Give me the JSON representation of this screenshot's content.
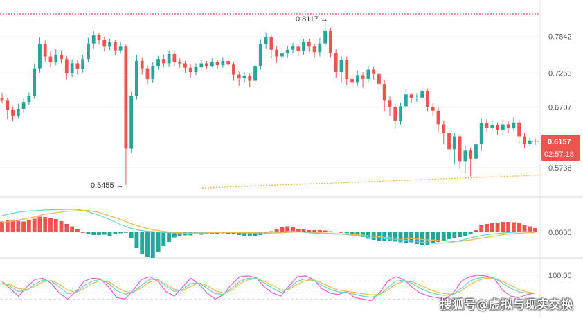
{
  "chart_data": [
    {
      "type": "candlestick",
      "title": "",
      "ylim": [
        0.5455,
        0.815
      ],
      "y_ticks": [
        "0.7842",
        "0.7253",
        "0.6707",
        "0.5736"
      ],
      "y_tick_values": [
        0.7842,
        0.7253,
        0.6707,
        0.5736
      ],
      "colors": {
        "up": "#26a69a",
        "down": "#ef5350",
        "grid": "#eef0f4",
        "axis_text": "#555a66"
      },
      "current_price": {
        "label": "0.6157",
        "value": 0.6157,
        "countdown": "02:57:18",
        "color": "#ef5350"
      },
      "annotations": [
        {
          "text": "0.8117 →",
          "value": 0.8117,
          "kind": "high"
        },
        {
          "text": "0.5455 →",
          "value": 0.5455,
          "kind": "low"
        }
      ],
      "reference_line": {
        "value": 0.8117,
        "style": "dotted",
        "color": "#d0312d"
      },
      "trend_line": {
        "style": "dotted",
        "color": "#f0b429",
        "from": 0.5408,
        "to": 0.5615
      },
      "candles": [
        [
          0.686,
          0.682,
          0.694,
          0.677
        ],
        [
          0.682,
          0.666,
          0.686,
          0.652
        ],
        [
          0.666,
          0.657,
          0.672,
          0.648
        ],
        [
          0.657,
          0.668,
          0.676,
          0.653
        ],
        [
          0.668,
          0.679,
          0.685,
          0.662
        ],
        [
          0.679,
          0.689,
          0.694,
          0.674
        ],
        [
          0.689,
          0.733,
          0.74,
          0.684
        ],
        [
          0.733,
          0.772,
          0.783,
          0.726
        ],
        [
          0.772,
          0.752,
          0.778,
          0.744
        ],
        [
          0.752,
          0.743,
          0.76,
          0.735
        ],
        [
          0.743,
          0.755,
          0.764,
          0.738
        ],
        [
          0.755,
          0.748,
          0.762,
          0.741
        ],
        [
          0.748,
          0.725,
          0.753,
          0.715
        ],
        [
          0.725,
          0.741,
          0.748,
          0.719
        ],
        [
          0.741,
          0.732,
          0.746,
          0.723
        ],
        [
          0.732,
          0.748,
          0.755,
          0.726
        ],
        [
          0.748,
          0.773,
          0.782,
          0.743
        ],
        [
          0.773,
          0.786,
          0.793,
          0.765
        ],
        [
          0.786,
          0.779,
          0.79,
          0.771
        ],
        [
          0.779,
          0.768,
          0.783,
          0.761
        ],
        [
          0.768,
          0.775,
          0.781,
          0.762
        ],
        [
          0.775,
          0.762,
          0.779,
          0.754
        ],
        [
          0.762,
          0.768,
          0.775,
          0.757
        ],
        [
          0.768,
          0.604,
          0.771,
          0.5455
        ],
        [
          0.604,
          0.689,
          0.696,
          0.598
        ],
        [
          0.689,
          0.745,
          0.754,
          0.683
        ],
        [
          0.745,
          0.733,
          0.751,
          0.723
        ],
        [
          0.733,
          0.716,
          0.738,
          0.707
        ],
        [
          0.716,
          0.737,
          0.743,
          0.71
        ],
        [
          0.737,
          0.748,
          0.753,
          0.731
        ],
        [
          0.748,
          0.741,
          0.755,
          0.735
        ],
        [
          0.741,
          0.756,
          0.762,
          0.736
        ],
        [
          0.756,
          0.743,
          0.76,
          0.737
        ],
        [
          0.743,
          0.741,
          0.749,
          0.734
        ],
        [
          0.741,
          0.734,
          0.745,
          0.726
        ],
        [
          0.734,
          0.727,
          0.739,
          0.719
        ],
        [
          0.727,
          0.735,
          0.741,
          0.722
        ],
        [
          0.735,
          0.741,
          0.746,
          0.731
        ],
        [
          0.741,
          0.737,
          0.745,
          0.732
        ],
        [
          0.737,
          0.743,
          0.749,
          0.735
        ],
        [
          0.743,
          0.738,
          0.747,
          0.732
        ],
        [
          0.738,
          0.745,
          0.751,
          0.734
        ],
        [
          0.745,
          0.739,
          0.75,
          0.734
        ],
        [
          0.739,
          0.723,
          0.743,
          0.713
        ],
        [
          0.723,
          0.717,
          0.728,
          0.705
        ],
        [
          0.717,
          0.721,
          0.727,
          0.71
        ],
        [
          0.721,
          0.713,
          0.725,
          0.703
        ],
        [
          0.713,
          0.737,
          0.745,
          0.707
        ],
        [
          0.737,
          0.772,
          0.78,
          0.731
        ],
        [
          0.772,
          0.783,
          0.791,
          0.765
        ],
        [
          0.783,
          0.763,
          0.787,
          0.749
        ],
        [
          0.763,
          0.752,
          0.769,
          0.742
        ],
        [
          0.752,
          0.757,
          0.763,
          0.731
        ],
        [
          0.757,
          0.763,
          0.769,
          0.751
        ],
        [
          0.763,
          0.768,
          0.774,
          0.757
        ],
        [
          0.768,
          0.761,
          0.772,
          0.753
        ],
        [
          0.761,
          0.776,
          0.781,
          0.755
        ],
        [
          0.776,
          0.768,
          0.781,
          0.76
        ],
        [
          0.768,
          0.759,
          0.773,
          0.75
        ],
        [
          0.759,
          0.773,
          0.782,
          0.752
        ],
        [
          0.773,
          0.794,
          0.8117,
          0.767
        ],
        [
          0.794,
          0.758,
          0.799,
          0.751
        ],
        [
          0.758,
          0.727,
          0.764,
          0.717
        ],
        [
          0.727,
          0.747,
          0.753,
          0.71
        ],
        [
          0.747,
          0.716,
          0.752,
          0.706
        ],
        [
          0.716,
          0.711,
          0.725,
          0.701
        ],
        [
          0.711,
          0.722,
          0.729,
          0.705
        ],
        [
          0.722,
          0.716,
          0.727,
          0.702
        ],
        [
          0.716,
          0.731,
          0.737,
          0.711
        ],
        [
          0.731,
          0.724,
          0.735,
          0.715
        ],
        [
          0.724,
          0.708,
          0.728,
          0.698
        ],
        [
          0.708,
          0.682,
          0.714,
          0.664
        ],
        [
          0.682,
          0.671,
          0.688,
          0.657
        ],
        [
          0.671,
          0.649,
          0.677,
          0.636
        ],
        [
          0.649,
          0.672,
          0.678,
          0.642
        ],
        [
          0.672,
          0.691,
          0.699,
          0.665
        ],
        [
          0.691,
          0.685,
          0.694,
          0.678
        ],
        [
          0.685,
          0.686,
          0.693,
          0.679
        ],
        [
          0.686,
          0.697,
          0.703,
          0.682
        ],
        [
          0.697,
          0.671,
          0.701,
          0.664
        ],
        [
          0.671,
          0.665,
          0.677,
          0.657
        ],
        [
          0.665,
          0.643,
          0.671,
          0.632
        ],
        [
          0.643,
          0.629,
          0.649,
          0.611
        ],
        [
          0.629,
          0.603,
          0.637,
          0.586
        ],
        [
          0.603,
          0.624,
          0.629,
          0.579
        ],
        [
          0.624,
          0.584,
          0.627,
          0.571
        ],
        [
          0.584,
          0.601,
          0.609,
          0.565
        ],
        [
          0.601,
          0.588,
          0.606,
          0.559
        ],
        [
          0.588,
          0.611,
          0.618,
          0.579
        ],
        [
          0.611,
          0.645,
          0.653,
          0.6
        ],
        [
          0.645,
          0.638,
          0.652,
          0.631
        ],
        [
          0.638,
          0.642,
          0.648,
          0.634
        ],
        [
          0.642,
          0.634,
          0.646,
          0.627
        ],
        [
          0.634,
          0.643,
          0.651,
          0.626
        ],
        [
          0.643,
          0.637,
          0.648,
          0.629
        ],
        [
          0.637,
          0.646,
          0.654,
          0.633
        ],
        [
          0.646,
          0.624,
          0.651,
          0.613
        ],
        [
          0.624,
          0.612,
          0.629,
          0.605
        ],
        [
          0.612,
          0.617,
          0.622,
          0.608
        ],
        [
          0.617,
          0.6157,
          0.621,
          0.61
        ]
      ],
      "indicator_note": "price pane"
    },
    {
      "type": "histogram-line",
      "y_tick": "0.0000",
      "histogram": [
        0.31,
        0.34,
        0.35,
        0.33,
        0.31,
        0.36,
        0.39,
        0.45,
        0.44,
        0.41,
        0.38,
        0.32,
        0.24,
        0.17,
        0.08,
        0.0,
        -0.04,
        -0.08,
        -0.08,
        -0.07,
        -0.1,
        -0.05,
        -0.03,
        -0.01,
        -0.18,
        -0.45,
        -0.62,
        -0.7,
        -0.74,
        -0.56,
        -0.4,
        -0.28,
        -0.15,
        -0.12,
        -0.09,
        -0.09,
        -0.06,
        -0.07,
        -0.06,
        -0.05,
        -0.05,
        -0.03,
        -0.05,
        -0.06,
        -0.08,
        -0.1,
        -0.12,
        -0.1,
        -0.08,
        -0.04,
        0.03,
        0.09,
        0.14,
        0.17,
        0.14,
        0.1,
        0.08,
        0.06,
        0.06,
        0.06,
        0.05,
        0.03,
        0.02,
        0.0,
        -0.03,
        -0.06,
        -0.1,
        -0.14,
        -0.19,
        -0.22,
        -0.24,
        -0.26,
        -0.24,
        -0.27,
        -0.29,
        -0.31,
        -0.29,
        -0.34,
        -0.36,
        -0.38,
        -0.33,
        -0.28,
        -0.24,
        -0.2,
        -0.16,
        -0.14,
        -0.1,
        -0.04,
        0.06,
        0.2,
        0.24,
        0.26,
        0.28,
        0.3,
        0.3,
        0.29,
        0.27,
        0.22,
        0.17,
        0.12
      ],
      "lines": [
        {
          "color": "#5fd4d4",
          "values": [
            0.48,
            0.55,
            0.6,
            0.62,
            0.64,
            0.65,
            0.66,
            0.66,
            0.6,
            0.5,
            0.38,
            0.24,
            0.12,
            0.05,
            0.02,
            0.0,
            -0.02,
            -0.03,
            -0.02,
            0.0,
            0.01,
            0.0,
            -0.01,
            -0.02,
            -0.02,
            -0.03,
            -0.01,
            0.03,
            0.01,
            -0.02,
            -0.04,
            -0.05,
            -0.06,
            -0.09,
            -0.13,
            -0.16,
            -0.19,
            -0.21,
            -0.23,
            -0.27,
            -0.31,
            -0.32,
            -0.3,
            -0.24,
            -0.16,
            -0.09,
            -0.05,
            -0.02,
            0.0,
            0.02,
            0.01
          ]
        },
        {
          "color": "#f5b940",
          "values": [
            0.28,
            0.32,
            0.38,
            0.44,
            0.52,
            0.56,
            0.6,
            0.62,
            0.63,
            0.58,
            0.48,
            0.38,
            0.26,
            0.16,
            0.08,
            0.03,
            0.0,
            -0.02,
            -0.03,
            -0.02,
            -0.01,
            0.0,
            -0.01,
            -0.01,
            -0.02,
            -0.02,
            -0.02,
            0.0,
            0.01,
            0.0,
            -0.02,
            -0.04,
            -0.05,
            -0.07,
            -0.09,
            -0.12,
            -0.15,
            -0.17,
            -0.18,
            -0.2,
            -0.22,
            -0.24,
            -0.26,
            -0.26,
            -0.22,
            -0.17,
            -0.12,
            -0.07,
            -0.04,
            -0.02,
            -0.01
          ]
        }
      ]
    },
    {
      "type": "line",
      "y_tick": "100.00",
      "ylim": [
        0,
        100
      ],
      "lines": [
        {
          "color": "#f05ad5",
          "values": [
            80,
            55,
            30,
            60,
            85,
            90,
            72,
            40,
            20,
            45,
            80,
            90,
            88,
            60,
            25,
            20,
            50,
            85,
            95,
            80,
            45,
            30,
            60,
            90,
            70,
            40,
            20,
            35,
            70,
            95,
            98,
            92,
            60,
            40,
            30,
            65,
            95,
            98,
            85,
            55,
            40,
            35,
            45,
            25,
            20,
            15,
            40,
            80,
            95,
            85,
            60,
            40,
            30,
            25,
            20,
            40,
            80,
            95,
            100,
            98,
            90,
            50,
            30,
            25,
            35,
            40
          ]
        },
        {
          "color": "#f5b940",
          "values": [
            70,
            68,
            55,
            52,
            62,
            78,
            82,
            70,
            50,
            42,
            55,
            72,
            82,
            78,
            60,
            45,
            42,
            58,
            78,
            82,
            70,
            52,
            48,
            62,
            75,
            65,
            48,
            40,
            50,
            72,
            85,
            88,
            80,
            66,
            50,
            52,
            70,
            82,
            84,
            74,
            60,
            50,
            46,
            42,
            38,
            34,
            36,
            50,
            70,
            80,
            78,
            66,
            54,
            44,
            38,
            36,
            48,
            68,
            82,
            90,
            90,
            80,
            66,
            52,
            44,
            40
          ]
        },
        {
          "color": "#5fd4d4",
          "values": [
            75,
            62,
            45,
            50,
            70,
            84,
            80,
            60,
            38,
            42,
            65,
            80,
            86,
            72,
            48,
            36,
            44,
            66,
            86,
            85,
            64,
            45,
            52,
            72,
            74,
            56,
            38,
            36,
            56,
            80,
            90,
            90,
            74,
            56,
            42,
            56,
            80,
            88,
            82,
            66,
            52,
            44,
            42,
            36,
            30,
            26,
            34,
            58,
            80,
            84,
            72,
            56,
            44,
            36,
            32,
            36,
            56,
            80,
            90,
            94,
            90,
            74,
            56,
            44,
            40,
            40
          ]
        }
      ]
    }
  ],
  "watermark": "搜狐号@虚拟与现实交换"
}
